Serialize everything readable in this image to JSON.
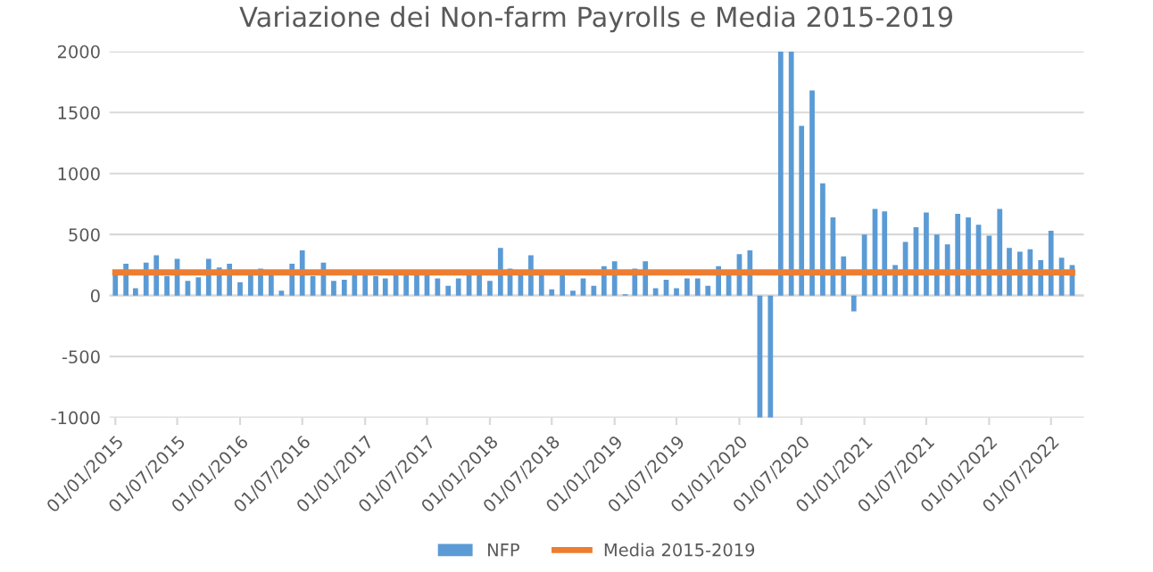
{
  "chart_data": {
    "type": "bar",
    "title": "Variazione dei Non-farm Payrolls e Media 2015-2019",
    "x": [
      "2015-01",
      "2015-02",
      "2015-03",
      "2015-04",
      "2015-05",
      "2015-06",
      "2015-07",
      "2015-08",
      "2015-09",
      "2015-10",
      "2015-11",
      "2015-12",
      "2016-01",
      "2016-02",
      "2016-03",
      "2016-04",
      "2016-05",
      "2016-06",
      "2016-07",
      "2016-08",
      "2016-09",
      "2016-10",
      "2016-11",
      "2016-12",
      "2017-01",
      "2017-02",
      "2017-03",
      "2017-04",
      "2017-05",
      "2017-06",
      "2017-07",
      "2017-08",
      "2017-09",
      "2017-10",
      "2017-11",
      "2017-12",
      "2018-01",
      "2018-02",
      "2018-03",
      "2018-04",
      "2018-05",
      "2018-06",
      "2018-07",
      "2018-08",
      "2018-09",
      "2018-10",
      "2018-11",
      "2018-12",
      "2019-01",
      "2019-02",
      "2019-03",
      "2019-04",
      "2019-05",
      "2019-06",
      "2019-07",
      "2019-08",
      "2019-09",
      "2019-10",
      "2019-11",
      "2019-12",
      "2020-01",
      "2020-02",
      "2020-03",
      "2020-04",
      "2020-05",
      "2020-06",
      "2020-07",
      "2020-08",
      "2020-09",
      "2020-10",
      "2020-11",
      "2020-12",
      "2021-01",
      "2021-02",
      "2021-03",
      "2021-04",
      "2021-05",
      "2021-06",
      "2021-07",
      "2021-08",
      "2021-09",
      "2021-10",
      "2021-11",
      "2021-12",
      "2022-01",
      "2022-02",
      "2022-03",
      "2022-04",
      "2022-05",
      "2022-06",
      "2022-07",
      "2022-08",
      "2022-09"
    ],
    "series": [
      {
        "name": "NFP",
        "color": "#5b9bd5",
        "values": [
          180,
          260,
          60,
          270,
          330,
          160,
          300,
          120,
          150,
          300,
          230,
          260,
          110,
          180,
          220,
          180,
          40,
          260,
          370,
          160,
          270,
          120,
          130,
          180,
          180,
          160,
          140,
          170,
          200,
          180,
          180,
          140,
          80,
          140,
          170,
          170,
          120,
          390,
          220,
          180,
          330,
          170,
          50,
          170,
          40,
          140,
          80,
          240,
          280,
          10,
          220,
          280,
          60,
          130,
          60,
          140,
          140,
          80,
          240,
          170,
          340,
          370,
          -1000,
          -1000,
          2000,
          2000,
          1390,
          1680,
          920,
          640,
          320,
          -130,
          500,
          710,
          690,
          250,
          440,
          560,
          680,
          500,
          420,
          670,
          640,
          580,
          490,
          710,
          390,
          360,
          380,
          290,
          530,
          310,
          250
        ]
      },
      {
        "name": "Media 2015-2019",
        "type": "line",
        "color": "#ed7d31",
        "values": [
          190,
          190,
          190,
          190,
          190,
          190,
          190,
          190,
          190,
          190,
          190,
          190,
          190,
          190,
          190,
          190,
          190,
          190,
          190,
          190,
          190,
          190,
          190,
          190,
          190,
          190,
          190,
          190,
          190,
          190,
          190,
          190,
          190,
          190,
          190,
          190,
          190,
          190,
          190,
          190,
          190,
          190,
          190,
          190,
          190,
          190,
          190,
          190,
          190,
          190,
          190,
          190,
          190,
          190,
          190,
          190,
          190,
          190,
          190,
          190,
          190,
          190,
          190,
          190,
          190,
          190,
          190,
          190,
          190,
          190,
          190,
          190,
          190,
          190,
          190,
          190,
          190,
          190,
          190,
          190,
          190,
          190,
          190,
          190,
          190,
          190,
          190,
          190,
          190,
          190,
          190,
          190,
          190
        ]
      }
    ],
    "ylim": [
      -1000,
      2000
    ],
    "yticks": [
      -1000,
      -500,
      0,
      500,
      1000,
      1500,
      2000
    ],
    "xlim": [
      "2014-12-15",
      "2022-10-05"
    ],
    "xticks": [
      {
        "value": "2015-01-01",
        "label": "01/01/2015"
      },
      {
        "value": "2015-07-01",
        "label": "01/07/2015"
      },
      {
        "value": "2016-01-01",
        "label": "01/01/2016"
      },
      {
        "value": "2016-07-01",
        "label": "01/07/2016"
      },
      {
        "value": "2017-01-01",
        "label": "01/01/2017"
      },
      {
        "value": "2017-07-01",
        "label": "01/07/2017"
      },
      {
        "value": "2018-01-01",
        "label": "01/01/2018"
      },
      {
        "value": "2018-07-01",
        "label": "01/07/2018"
      },
      {
        "value": "2019-01-01",
        "label": "01/01/2019"
      },
      {
        "value": "2019-07-01",
        "label": "01/07/2019"
      },
      {
        "value": "2020-01-01",
        "label": "01/01/2020"
      },
      {
        "value": "2020-07-01",
        "label": "01/07/2020"
      },
      {
        "value": "2021-01-01",
        "label": "01/01/2021"
      },
      {
        "value": "2021-07-01",
        "label": "01/07/2021"
      },
      {
        "value": "2022-01-01",
        "label": "01/01/2022"
      },
      {
        "value": "2022-07-01",
        "label": "01/07/2022"
      }
    ],
    "grid": "y",
    "legend": "bottom"
  }
}
